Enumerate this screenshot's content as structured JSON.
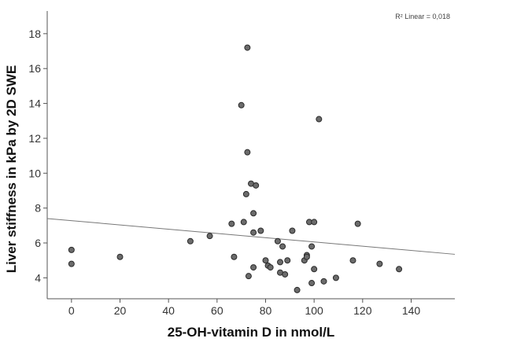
{
  "chart_data": {
    "type": "scatter",
    "title": "",
    "xlabel": "25-OH-vitamin D in nmol/L",
    "ylabel": "Liver stiffness in kPa by 2D SWE",
    "xlim": [
      -10,
      158
    ],
    "ylim": [
      2.8,
      19.3
    ],
    "x_ticks": [
      0,
      20,
      40,
      60,
      80,
      100,
      120,
      140
    ],
    "y_ticks": [
      4,
      6,
      8,
      10,
      12,
      14,
      16,
      18
    ],
    "grid": false,
    "annotation": "R² Linear = 0,018",
    "fit_line": {
      "x": [
        -10,
        158
      ],
      "y": [
        7.4,
        5.35
      ]
    },
    "points": [
      {
        "x": 0,
        "y": 5.6
      },
      {
        "x": 0,
        "y": 4.8
      },
      {
        "x": 20,
        "y": 5.2
      },
      {
        "x": 49,
        "y": 6.1
      },
      {
        "x": 57,
        "y": 6.4
      },
      {
        "x": 66,
        "y": 7.1
      },
      {
        "x": 67,
        "y": 5.2
      },
      {
        "x": 70,
        "y": 13.9
      },
      {
        "x": 71,
        "y": 7.2
      },
      {
        "x": 72,
        "y": 8.8
      },
      {
        "x": 72.5,
        "y": 17.2
      },
      {
        "x": 72.5,
        "y": 11.2
      },
      {
        "x": 73,
        "y": 4.1
      },
      {
        "x": 74,
        "y": 9.4
      },
      {
        "x": 75,
        "y": 7.7
      },
      {
        "x": 75,
        "y": 6.6
      },
      {
        "x": 75,
        "y": 4.6
      },
      {
        "x": 76,
        "y": 9.3
      },
      {
        "x": 78,
        "y": 6.7
      },
      {
        "x": 80,
        "y": 5.0
      },
      {
        "x": 81,
        "y": 4.7
      },
      {
        "x": 82,
        "y": 4.6
      },
      {
        "x": 85,
        "y": 6.1
      },
      {
        "x": 86,
        "y": 4.9
      },
      {
        "x": 86,
        "y": 4.3
      },
      {
        "x": 87,
        "y": 5.8
      },
      {
        "x": 88,
        "y": 4.2
      },
      {
        "x": 89,
        "y": 5.0
      },
      {
        "x": 91,
        "y": 6.7
      },
      {
        "x": 93,
        "y": 3.3
      },
      {
        "x": 96,
        "y": 5.0
      },
      {
        "x": 97,
        "y": 5.3
      },
      {
        "x": 97,
        "y": 5.2
      },
      {
        "x": 98,
        "y": 7.2
      },
      {
        "x": 99,
        "y": 5.8
      },
      {
        "x": 99,
        "y": 3.7
      },
      {
        "x": 100,
        "y": 7.2
      },
      {
        "x": 100,
        "y": 4.5
      },
      {
        "x": 102,
        "y": 13.1
      },
      {
        "x": 104,
        "y": 3.8
      },
      {
        "x": 109,
        "y": 4.0
      },
      {
        "x": 116,
        "y": 5.0
      },
      {
        "x": 118,
        "y": 7.1
      },
      {
        "x": 127,
        "y": 4.8
      },
      {
        "x": 135,
        "y": 4.5
      }
    ]
  }
}
